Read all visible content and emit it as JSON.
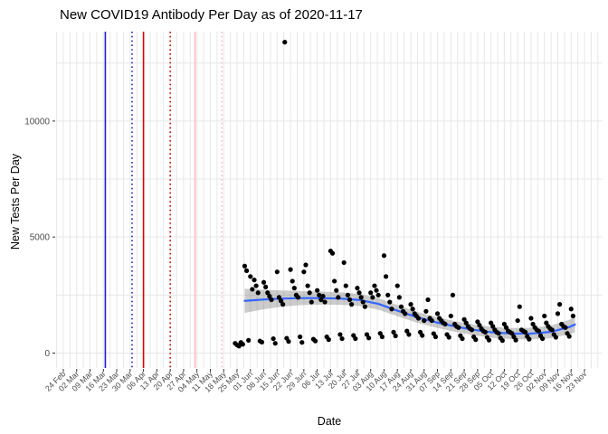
{
  "page": {
    "title": "New COVID19 Antibody Per Day as of 2020-11-17"
  },
  "chart_data": {
    "type": "scatter",
    "title": "New COVID19 Antibody Per Day as of 2020-11-17",
    "xlabel": "Date",
    "ylabel": "New Tests Per Day",
    "legend": "none",
    "grid": "on",
    "background": "#ffffff",
    "x_axis": {
      "start_date": "2020-02-24",
      "tick_interval_days": 7,
      "tick_labels": [
        "24 Feb",
        "02 Mar",
        "09 Mar",
        "16 Mar",
        "23 Mar",
        "30 Mar",
        "06 Apr",
        "13 Apr",
        "20 Apr",
        "27 Apr",
        "04 May",
        "11 May",
        "18 May",
        "25 May",
        "01 Jun",
        "08 Jun",
        "15 Jun",
        "22 Jun",
        "29 Jun",
        "06 Jul",
        "13 Jul",
        "20 Jul",
        "27 Jul",
        "03 Aug",
        "10 Aug",
        "17 Aug",
        "24 Aug",
        "31 Aug",
        "07 Sep",
        "14 Sep",
        "21 Sep",
        "28 Sep",
        "05 Oct",
        "12 Oct",
        "19 Oct",
        "26 Oct",
        "02 Nov",
        "09 Nov",
        "16 Nov",
        "23 Nov"
      ]
    },
    "y_axis": {
      "ticks": [
        0,
        5000,
        10000
      ],
      "tick_labels": [
        "0",
        "5000",
        "10000"
      ],
      "minor_ticks": [
        2500,
        7500,
        12500
      ],
      "ylim": [
        0,
        13900
      ]
    },
    "event_vlines": [
      {
        "date": "2020-03-17",
        "color": "#2121c8",
        "style": "solid"
      },
      {
        "date": "2020-03-31",
        "color": "#2121c8",
        "style": "dotted"
      },
      {
        "date": "2020-04-06",
        "color": "#e00000",
        "style": "solid"
      },
      {
        "date": "2020-04-20",
        "color": "#e00000",
        "style": "dotted"
      },
      {
        "date": "2020-05-03",
        "color": "#ffb6c1",
        "style": "solid"
      },
      {
        "date": "2020-05-17",
        "color": "#ffb6c1",
        "style": "dotted"
      }
    ],
    "smooth": {
      "name": "loess-trend",
      "color": "#3366ff",
      "ci_color": "rgba(110,110,110,0.35)",
      "dates": [
        "2020-05-29",
        "2020-06-08",
        "2020-06-18",
        "2020-06-28",
        "2020-07-08",
        "2020-07-18",
        "2020-07-28",
        "2020-08-07",
        "2020-08-17",
        "2020-08-27",
        "2020-09-06",
        "2020-09-16",
        "2020-09-26",
        "2020-10-06",
        "2020-10-16",
        "2020-10-26",
        "2020-11-05",
        "2020-11-15",
        "2020-11-18"
      ],
      "values": [
        2250,
        2310,
        2350,
        2370,
        2370,
        2350,
        2290,
        2120,
        1830,
        1550,
        1330,
        1150,
        1000,
        890,
        840,
        840,
        910,
        1120,
        1230
      ],
      "ci_lower": [
        1730,
        1890,
        2000,
        2070,
        2090,
        2080,
        2030,
        1870,
        1590,
        1315,
        1100,
        920,
        770,
        655,
        600,
        590,
        640,
        810,
        890
      ],
      "ci_upper": [
        2770,
        2730,
        2700,
        2670,
        2650,
        2620,
        2550,
        2370,
        2070,
        1785,
        1560,
        1380,
        1230,
        1125,
        1080,
        1090,
        1180,
        1430,
        1570
      ]
    },
    "point_color": "#000000",
    "points": [
      [
        "2020-05-24",
        420
      ],
      [
        "2020-05-25",
        350
      ],
      [
        "2020-05-26",
        300
      ],
      [
        "2020-05-27",
        460
      ],
      [
        "2020-05-28",
        380
      ],
      [
        "2020-05-29",
        3750
      ],
      [
        "2020-05-30",
        3550
      ],
      [
        "2020-05-31",
        550
      ],
      [
        "2020-06-01",
        3300
      ],
      [
        "2020-06-02",
        2750
      ],
      [
        "2020-06-03",
        3150
      ],
      [
        "2020-06-04",
        2900
      ],
      [
        "2020-06-05",
        2600
      ],
      [
        "2020-06-06",
        520
      ],
      [
        "2020-06-07",
        470
      ],
      [
        "2020-06-08",
        3050
      ],
      [
        "2020-06-09",
        2850
      ],
      [
        "2020-06-10",
        2600
      ],
      [
        "2020-06-11",
        2450
      ],
      [
        "2020-06-12",
        2300
      ],
      [
        "2020-06-13",
        620
      ],
      [
        "2020-06-14",
        420
      ],
      [
        "2020-06-15",
        3500
      ],
      [
        "2020-06-16",
        2400
      ],
      [
        "2020-06-17",
        2250
      ],
      [
        "2020-06-18",
        2100
      ],
      [
        "2020-06-19",
        13400
      ],
      [
        "2020-06-20",
        640
      ],
      [
        "2020-06-21",
        500
      ],
      [
        "2020-06-22",
        3600
      ],
      [
        "2020-06-23",
        3100
      ],
      [
        "2020-06-24",
        2800
      ],
      [
        "2020-06-25",
        2500
      ],
      [
        "2020-06-26",
        2400
      ],
      [
        "2020-06-27",
        700
      ],
      [
        "2020-06-28",
        460
      ],
      [
        "2020-06-29",
        3500
      ],
      [
        "2020-06-30",
        3800
      ],
      [
        "2020-07-01",
        2900
      ],
      [
        "2020-07-02",
        2600
      ],
      [
        "2020-07-03",
        2200
      ],
      [
        "2020-07-04",
        600
      ],
      [
        "2020-07-05",
        520
      ],
      [
        "2020-07-06",
        2700
      ],
      [
        "2020-07-07",
        2500
      ],
      [
        "2020-07-08",
        2300
      ],
      [
        "2020-07-09",
        2450
      ],
      [
        "2020-07-10",
        2200
      ],
      [
        "2020-07-11",
        700
      ],
      [
        "2020-07-12",
        580
      ],
      [
        "2020-07-13",
        4400
      ],
      [
        "2020-07-14",
        4300
      ],
      [
        "2020-07-15",
        3100
      ],
      [
        "2020-07-16",
        2700
      ],
      [
        "2020-07-17",
        2400
      ],
      [
        "2020-07-18",
        800
      ],
      [
        "2020-07-19",
        620
      ],
      [
        "2020-07-20",
        3900
      ],
      [
        "2020-07-21",
        2900
      ],
      [
        "2020-07-22",
        2500
      ],
      [
        "2020-07-23",
        2300
      ],
      [
        "2020-07-24",
        2100
      ],
      [
        "2020-07-25",
        760
      ],
      [
        "2020-07-26",
        620
      ],
      [
        "2020-07-27",
        2800
      ],
      [
        "2020-07-28",
        2600
      ],
      [
        "2020-07-29",
        2400
      ],
      [
        "2020-07-30",
        2200
      ],
      [
        "2020-07-31",
        2000
      ],
      [
        "2020-08-01",
        800
      ],
      [
        "2020-08-02",
        650
      ],
      [
        "2020-08-03",
        2600
      ],
      [
        "2020-08-04",
        2400
      ],
      [
        "2020-08-05",
        2900
      ],
      [
        "2020-08-06",
        2700
      ],
      [
        "2020-08-07",
        2500
      ],
      [
        "2020-08-08",
        850
      ],
      [
        "2020-08-09",
        700
      ],
      [
        "2020-08-10",
        4200
      ],
      [
        "2020-08-11",
        3300
      ],
      [
        "2020-08-12",
        2500
      ],
      [
        "2020-08-13",
        2200
      ],
      [
        "2020-08-14",
        1900
      ],
      [
        "2020-08-15",
        900
      ],
      [
        "2020-08-16",
        740
      ],
      [
        "2020-08-17",
        2900
      ],
      [
        "2020-08-18",
        2400
      ],
      [
        "2020-08-19",
        2000
      ],
      [
        "2020-08-20",
        1800
      ],
      [
        "2020-08-21",
        1700
      ],
      [
        "2020-08-22",
        950
      ],
      [
        "2020-08-23",
        800
      ],
      [
        "2020-08-24",
        2100
      ],
      [
        "2020-08-25",
        1900
      ],
      [
        "2020-08-26",
        1700
      ],
      [
        "2020-08-27",
        1600
      ],
      [
        "2020-08-28",
        1500
      ],
      [
        "2020-08-29",
        900
      ],
      [
        "2020-08-30",
        760
      ],
      [
        "2020-08-31",
        1400
      ],
      [
        "2020-09-01",
        1800
      ],
      [
        "2020-09-02",
        2300
      ],
      [
        "2020-09-03",
        1500
      ],
      [
        "2020-09-04",
        1400
      ],
      [
        "2020-09-05",
        840
      ],
      [
        "2020-09-06",
        700
      ],
      [
        "2020-09-07",
        1700
      ],
      [
        "2020-09-08",
        1500
      ],
      [
        "2020-09-09",
        1400
      ],
      [
        "2020-09-10",
        1300
      ],
      [
        "2020-09-11",
        1250
      ],
      [
        "2020-09-12",
        800
      ],
      [
        "2020-09-13",
        680
      ],
      [
        "2020-09-14",
        1600
      ],
      [
        "2020-09-15",
        2500
      ],
      [
        "2020-09-16",
        1250
      ],
      [
        "2020-09-17",
        1150
      ],
      [
        "2020-09-18",
        1100
      ],
      [
        "2020-09-19",
        750
      ],
      [
        "2020-09-20",
        620
      ],
      [
        "2020-09-21",
        1450
      ],
      [
        "2020-09-22",
        1300
      ],
      [
        "2020-09-23",
        1150
      ],
      [
        "2020-09-24",
        1050
      ],
      [
        "2020-09-25",
        1000
      ],
      [
        "2020-09-26",
        700
      ],
      [
        "2020-09-27",
        580
      ],
      [
        "2020-09-28",
        1350
      ],
      [
        "2020-09-29",
        1200
      ],
      [
        "2020-09-30",
        1050
      ],
      [
        "2020-10-01",
        950
      ],
      [
        "2020-10-02",
        900
      ],
      [
        "2020-10-03",
        680
      ],
      [
        "2020-10-04",
        560
      ],
      [
        "2020-10-05",
        1300
      ],
      [
        "2020-10-06",
        1150
      ],
      [
        "2020-10-07",
        1000
      ],
      [
        "2020-10-08",
        900
      ],
      [
        "2020-10-09",
        850
      ],
      [
        "2020-10-10",
        650
      ],
      [
        "2020-10-11",
        540
      ],
      [
        "2020-10-12",
        1250
      ],
      [
        "2020-10-13",
        1100
      ],
      [
        "2020-10-14",
        950
      ],
      [
        "2020-10-15",
        900
      ],
      [
        "2020-10-16",
        850
      ],
      [
        "2020-10-17",
        700
      ],
      [
        "2020-10-18",
        560
      ],
      [
        "2020-10-19",
        1400
      ],
      [
        "2020-10-20",
        2000
      ],
      [
        "2020-10-21",
        1000
      ],
      [
        "2020-10-22",
        950
      ],
      [
        "2020-10-23",
        900
      ],
      [
        "2020-10-24",
        720
      ],
      [
        "2020-10-25",
        600
      ],
      [
        "2020-10-26",
        1500
      ],
      [
        "2020-10-27",
        1250
      ],
      [
        "2020-10-28",
        1100
      ],
      [
        "2020-10-29",
        1000
      ],
      [
        "2020-10-30",
        950
      ],
      [
        "2020-10-31",
        750
      ],
      [
        "2020-11-01",
        620
      ],
      [
        "2020-11-02",
        1600
      ],
      [
        "2020-11-03",
        1300
      ],
      [
        "2020-11-04",
        1150
      ],
      [
        "2020-11-05",
        1050
      ],
      [
        "2020-11-06",
        1000
      ],
      [
        "2020-11-07",
        800
      ],
      [
        "2020-11-08",
        680
      ],
      [
        "2020-11-09",
        1700
      ],
      [
        "2020-11-10",
        2100
      ],
      [
        "2020-11-11",
        1250
      ],
      [
        "2020-11-12",
        1150
      ],
      [
        "2020-11-13",
        1100
      ],
      [
        "2020-11-14",
        850
      ],
      [
        "2020-11-15",
        720
      ],
      [
        "2020-11-16",
        1900
      ],
      [
        "2020-11-17",
        1600
      ]
    ],
    "colors": {
      "grid": "#e7e7e7",
      "tick_mark": "#333333",
      "tick_label": "#4d4d4d",
      "axis_title": "#000000"
    }
  }
}
